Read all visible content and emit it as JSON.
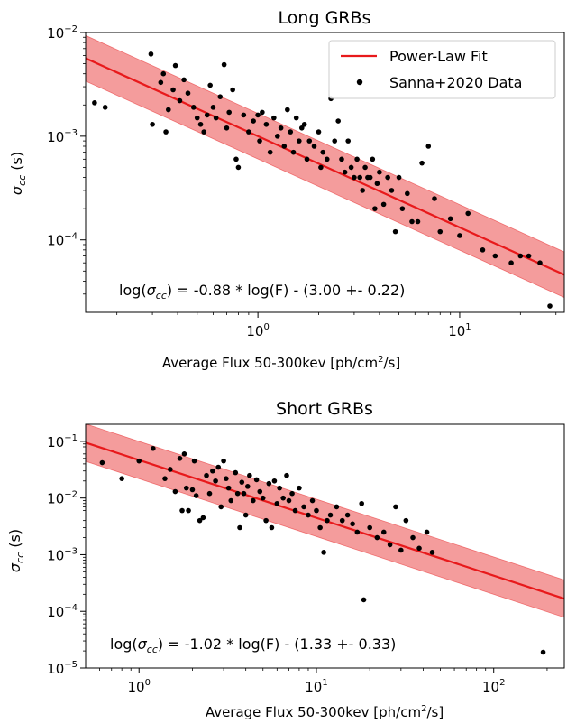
{
  "colors": {
    "fit": "#e8191b",
    "band": "#f28b8b",
    "point": "#000000",
    "axis": "#000000"
  },
  "legend": {
    "fit_label": "Power-Law Fit",
    "data_label": "Sanna+2020 Data"
  },
  "chart_data": [
    {
      "type": "scatter",
      "title": "Long GRBs",
      "xlabel": "Average Flux 50-300kev [ph/cm²/s]",
      "ylabel": "σcc (s)",
      "x_scale": "log",
      "y_scale": "log",
      "xlim": [
        0.14,
        33
      ],
      "ylim": [
        2e-05,
        0.01
      ],
      "x_ticks": [
        {
          "value": 1,
          "label": "10^0"
        },
        {
          "value": 10,
          "label": "10^1"
        }
      ],
      "y_ticks": [
        {
          "value": 0.0001,
          "label": "10^-4"
        },
        {
          "value": 0.001,
          "label": "10^-3"
        },
        {
          "value": 0.01,
          "label": "10^-2"
        }
      ],
      "legend_position": "top-right",
      "grid": false,
      "fit": {
        "slope": -0.88,
        "intercept": -3.0,
        "band": 0.22
      },
      "annotation": {
        "text_prefix": "log(",
        "symbol": "σ",
        "symbol_subscript": "cc",
        "text_suffix": ") = -0.88 * log(F) - (3.00 +- 0.22)"
      },
      "points": [
        [
          0.155,
          0.0021
        ],
        [
          0.175,
          0.0019
        ],
        [
          0.295,
          0.0062
        ],
        [
          0.3,
          0.0013
        ],
        [
          0.33,
          0.0033
        ],
        [
          0.34,
          0.004
        ],
        [
          0.35,
          0.0011
        ],
        [
          0.36,
          0.0018
        ],
        [
          0.38,
          0.0028
        ],
        [
          0.39,
          0.0048
        ],
        [
          0.41,
          0.0022
        ],
        [
          0.43,
          0.0035
        ],
        [
          0.45,
          0.0026
        ],
        [
          0.48,
          0.0019
        ],
        [
          0.5,
          0.0015
        ],
        [
          0.52,
          0.0013
        ],
        [
          0.54,
          0.0011
        ],
        [
          0.56,
          0.0016
        ],
        [
          0.58,
          0.0031
        ],
        [
          0.6,
          0.0019
        ],
        [
          0.62,
          0.0015
        ],
        [
          0.65,
          0.0024
        ],
        [
          0.68,
          0.0049
        ],
        [
          0.7,
          0.0012
        ],
        [
          0.72,
          0.0017
        ],
        [
          0.75,
          0.0028
        ],
        [
          0.78,
          0.0006
        ],
        [
          0.8,
          0.0005
        ],
        [
          0.85,
          0.0016
        ],
        [
          0.9,
          0.0011
        ],
        [
          0.95,
          0.0014
        ],
        [
          1.0,
          0.0016
        ],
        [
          1.02,
          0.0009
        ],
        [
          1.05,
          0.0017
        ],
        [
          1.1,
          0.0013
        ],
        [
          1.15,
          0.0007
        ],
        [
          1.2,
          0.0015
        ],
        [
          1.25,
          0.001
        ],
        [
          1.3,
          0.0012
        ],
        [
          1.35,
          0.0008
        ],
        [
          1.4,
          0.0018
        ],
        [
          1.45,
          0.0011
        ],
        [
          1.5,
          0.0007
        ],
        [
          1.55,
          0.0015
        ],
        [
          1.6,
          0.0009
        ],
        [
          1.65,
          0.0012
        ],
        [
          1.7,
          0.0013
        ],
        [
          1.75,
          0.0006
        ],
        [
          1.8,
          0.0009
        ],
        [
          1.9,
          0.0008
        ],
        [
          2.0,
          0.0011
        ],
        [
          2.05,
          0.0005
        ],
        [
          2.1,
          0.0007
        ],
        [
          2.2,
          0.0006
        ],
        [
          2.3,
          0.0023
        ],
        [
          2.4,
          0.0009
        ],
        [
          2.5,
          0.0014
        ],
        [
          2.6,
          0.0006
        ],
        [
          2.7,
          0.00045
        ],
        [
          2.8,
          0.0009
        ],
        [
          2.9,
          0.0005
        ],
        [
          3.0,
          0.0004
        ],
        [
          3.1,
          0.0006
        ],
        [
          3.2,
          0.0004
        ],
        [
          3.3,
          0.0003
        ],
        [
          3.4,
          0.0005
        ],
        [
          3.5,
          0.0004
        ],
        [
          3.6,
          0.0004
        ],
        [
          3.7,
          0.0006
        ],
        [
          3.8,
          0.0002
        ],
        [
          3.9,
          0.00035
        ],
        [
          4.0,
          0.00045
        ],
        [
          4.2,
          0.00022
        ],
        [
          4.4,
          0.0004
        ],
        [
          4.6,
          0.0003
        ],
        [
          4.8,
          0.00012
        ],
        [
          5.0,
          0.0004
        ],
        [
          5.2,
          0.0002
        ],
        [
          5.5,
          0.00028
        ],
        [
          5.8,
          0.00015
        ],
        [
          6.2,
          0.00015
        ],
        [
          6.5,
          0.00055
        ],
        [
          7.0,
          0.0008
        ],
        [
          7.5,
          0.00025
        ],
        [
          8.0,
          0.00012
        ],
        [
          9.0,
          0.00016
        ],
        [
          10.0,
          0.00011
        ],
        [
          11.0,
          0.00018
        ],
        [
          13.0,
          8e-05
        ],
        [
          15.0,
          7e-05
        ],
        [
          18.0,
          6e-05
        ],
        [
          20.0,
          7e-05
        ],
        [
          22.0,
          7e-05
        ],
        [
          25.0,
          6e-05
        ],
        [
          28.0,
          2.3e-05
        ]
      ]
    },
    {
      "type": "scatter",
      "title": "Short GRBs",
      "xlabel": "Average Flux 50-300kev [ph/cm²/s]",
      "ylabel": "σcc (s)",
      "x_scale": "log",
      "y_scale": "log",
      "xlim": [
        0.5,
        250
      ],
      "ylim": [
        1e-05,
        0.2
      ],
      "x_ticks": [
        {
          "value": 1,
          "label": "10^0"
        },
        {
          "value": 10,
          "label": "10^1"
        },
        {
          "value": 100,
          "label": "10^2"
        }
      ],
      "y_ticks": [
        {
          "value": 1e-05,
          "label": "10^-5"
        },
        {
          "value": 0.0001,
          "label": "10^-4"
        },
        {
          "value": 0.001,
          "label": "10^-3"
        },
        {
          "value": 0.01,
          "label": "10^-2"
        },
        {
          "value": 0.1,
          "label": "10^-1"
        }
      ],
      "legend_position": "none",
      "grid": false,
      "fit": {
        "slope": -1.02,
        "intercept": -1.33,
        "band": 0.33
      },
      "annotation": {
        "text_prefix": "log(",
        "symbol": "σ",
        "symbol_subscript": "cc",
        "text_suffix": ") = -1.02 * log(F) - (1.33 +- 0.33)"
      },
      "points": [
        [
          0.62,
          0.042
        ],
        [
          0.8,
          0.022
        ],
        [
          1.0,
          0.045
        ],
        [
          1.2,
          0.075
        ],
        [
          1.4,
          0.022
        ],
        [
          1.5,
          0.032
        ],
        [
          1.6,
          0.013
        ],
        [
          1.7,
          0.05
        ],
        [
          1.75,
          0.006
        ],
        [
          1.8,
          0.06
        ],
        [
          1.85,
          0.015
        ],
        [
          1.9,
          0.006
        ],
        [
          2.0,
          0.014
        ],
        [
          2.05,
          0.045
        ],
        [
          2.1,
          0.011
        ],
        [
          2.2,
          0.004
        ],
        [
          2.3,
          0.0045
        ],
        [
          2.4,
          0.025
        ],
        [
          2.5,
          0.012
        ],
        [
          2.6,
          0.03
        ],
        [
          2.7,
          0.02
        ],
        [
          2.8,
          0.035
        ],
        [
          2.9,
          0.007
        ],
        [
          3.0,
          0.045
        ],
        [
          3.1,
          0.022
        ],
        [
          3.2,
          0.015
        ],
        [
          3.3,
          0.009
        ],
        [
          3.5,
          0.028
        ],
        [
          3.6,
          0.012
        ],
        [
          3.7,
          0.003
        ],
        [
          3.8,
          0.019
        ],
        [
          3.9,
          0.012
        ],
        [
          4.0,
          0.005
        ],
        [
          4.1,
          0.016
        ],
        [
          4.2,
          0.025
        ],
        [
          4.4,
          0.009
        ],
        [
          4.6,
          0.021
        ],
        [
          4.8,
          0.013
        ],
        [
          5.0,
          0.01
        ],
        [
          5.2,
          0.004
        ],
        [
          5.4,
          0.018
        ],
        [
          5.6,
          0.003
        ],
        [
          5.8,
          0.02
        ],
        [
          6.0,
          0.008
        ],
        [
          6.2,
          0.015
        ],
        [
          6.5,
          0.01
        ],
        [
          6.8,
          0.025
        ],
        [
          7.0,
          0.009
        ],
        [
          7.3,
          0.012
        ],
        [
          7.6,
          0.006
        ],
        [
          8.0,
          0.015
        ],
        [
          8.5,
          0.007
        ],
        [
          9.0,
          0.005
        ],
        [
          9.5,
          0.009
        ],
        [
          10.0,
          0.006
        ],
        [
          10.5,
          0.003
        ],
        [
          11.0,
          0.0011
        ],
        [
          11.5,
          0.004
        ],
        [
          12.0,
          0.005
        ],
        [
          13.0,
          0.007
        ],
        [
          14.0,
          0.004
        ],
        [
          15.0,
          0.005
        ],
        [
          16.0,
          0.0035
        ],
        [
          17.0,
          0.0025
        ],
        [
          18.0,
          0.008
        ],
        [
          18.5,
          0.00016
        ],
        [
          20.0,
          0.003
        ],
        [
          22.0,
          0.002
        ],
        [
          24.0,
          0.0025
        ],
        [
          26.0,
          0.0015
        ],
        [
          28.0,
          0.007
        ],
        [
          30.0,
          0.0012
        ],
        [
          32.0,
          0.004
        ],
        [
          35.0,
          0.002
        ],
        [
          38.0,
          0.0013
        ],
        [
          42.0,
          0.0025
        ],
        [
          45.0,
          0.0011
        ],
        [
          190.0,
          1.9e-05
        ]
      ]
    }
  ]
}
